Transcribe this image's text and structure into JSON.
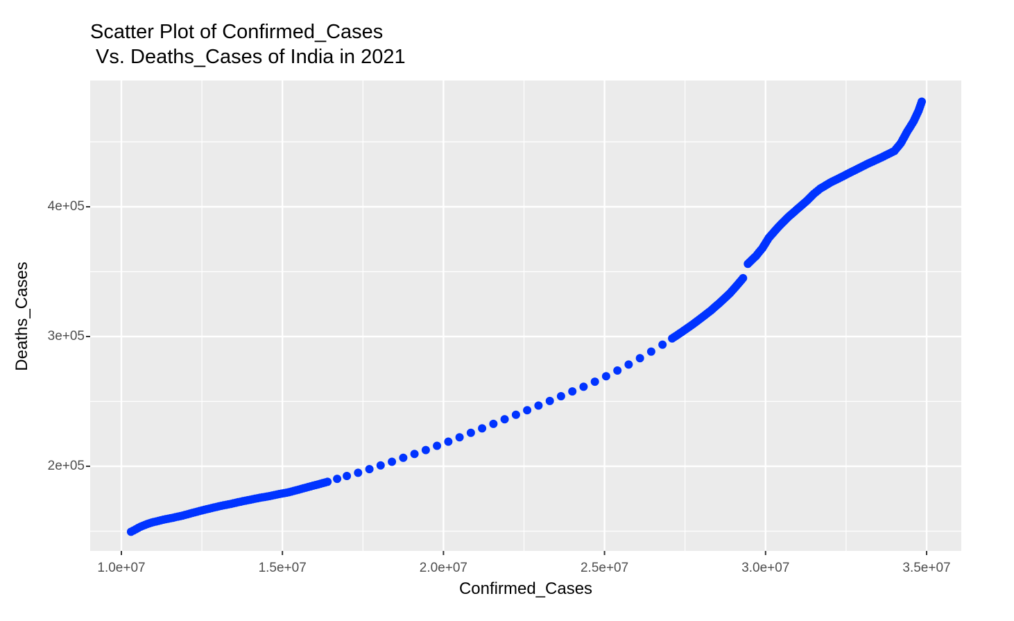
{
  "chart_data": {
    "type": "scatter",
    "title": "Scatter Plot of Confirmed_Cases\n Vs. Deaths_Cases of India in 2021",
    "xlabel": "Confirmed_Cases",
    "ylabel": "Deaths_Cases",
    "x_ticks": [
      "1.0e+07",
      "1.5e+07",
      "2.0e+07",
      "2.5e+07",
      "3.0e+07",
      "3.5e+07"
    ],
    "y_ticks": [
      "2e+05",
      "3e+05",
      "4e+05"
    ],
    "xlim": [
      9000000,
      36000000
    ],
    "ylim": [
      135000,
      495000
    ],
    "grid": true,
    "legend": "none",
    "point_color": "#0033FF",
    "panel_background": "#EBEBEB",
    "series": [
      {
        "name": "India 2021",
        "points": [
          [
            10300000,
            149500
          ],
          [
            10450000,
            151500
          ],
          [
            10600000,
            153500
          ],
          [
            10800000,
            155500
          ],
          [
            11000000,
            157000
          ],
          [
            11300000,
            158800
          ],
          [
            11600000,
            160300
          ],
          [
            11900000,
            162000
          ],
          [
            12200000,
            164000
          ],
          [
            12500000,
            166000
          ],
          [
            12800000,
            167800
          ],
          [
            13100000,
            169500
          ],
          [
            13400000,
            171000
          ],
          [
            13700000,
            172700
          ],
          [
            14000000,
            174200
          ],
          [
            14300000,
            175700
          ],
          [
            14600000,
            177000
          ],
          [
            14900000,
            178600
          ],
          [
            15200000,
            180000
          ],
          [
            15500000,
            182000
          ],
          [
            15800000,
            184000
          ],
          [
            16100000,
            186000
          ],
          [
            16400000,
            188000
          ],
          [
            16700000,
            190300
          ],
          [
            17000000,
            192500
          ],
          [
            17350000,
            195000
          ],
          [
            17700000,
            197800
          ],
          [
            18050000,
            200700
          ],
          [
            18400000,
            203500
          ],
          [
            18750000,
            206500
          ],
          [
            19100000,
            209500
          ],
          [
            19450000,
            212500
          ],
          [
            19800000,
            215800
          ],
          [
            20150000,
            219000
          ],
          [
            20500000,
            222300
          ],
          [
            20850000,
            225800
          ],
          [
            21200000,
            229200
          ],
          [
            21550000,
            232700
          ],
          [
            21900000,
            236200
          ],
          [
            22250000,
            239700
          ],
          [
            22600000,
            243200
          ],
          [
            22950000,
            246800
          ],
          [
            23300000,
            250300
          ],
          [
            23650000,
            254000
          ],
          [
            24000000,
            257700
          ],
          [
            24350000,
            261300
          ],
          [
            24700000,
            265200
          ],
          [
            25050000,
            269400
          ],
          [
            25400000,
            273800
          ],
          [
            25750000,
            278400
          ],
          [
            26100000,
            283300
          ],
          [
            26450000,
            288400
          ],
          [
            26800000,
            293700
          ],
          [
            27100000,
            298500
          ],
          [
            27400000,
            303500
          ],
          [
            27700000,
            308700
          ],
          [
            28000000,
            314200
          ],
          [
            28300000,
            320000
          ],
          [
            28600000,
            326500
          ],
          [
            28900000,
            333500
          ],
          [
            29150000,
            340500
          ],
          [
            29300000,
            345000
          ],
          [
            29450000,
            356000
          ],
          [
            29700000,
            362000
          ],
          [
            29900000,
            368000
          ],
          [
            30100000,
            376000
          ],
          [
            30400000,
            384500
          ],
          [
            30700000,
            392000
          ],
          [
            31000000,
            398500
          ],
          [
            31300000,
            405000
          ],
          [
            31500000,
            410000
          ],
          [
            31700000,
            414000
          ],
          [
            32000000,
            418500
          ],
          [
            32400000,
            423500
          ],
          [
            32800000,
            428500
          ],
          [
            33200000,
            433500
          ],
          [
            33600000,
            438000
          ],
          [
            34000000,
            443000
          ],
          [
            34200000,
            449000
          ],
          [
            34400000,
            458000
          ],
          [
            34600000,
            466000
          ],
          [
            34750000,
            474000
          ],
          [
            34850000,
            481000
          ]
        ]
      }
    ]
  }
}
